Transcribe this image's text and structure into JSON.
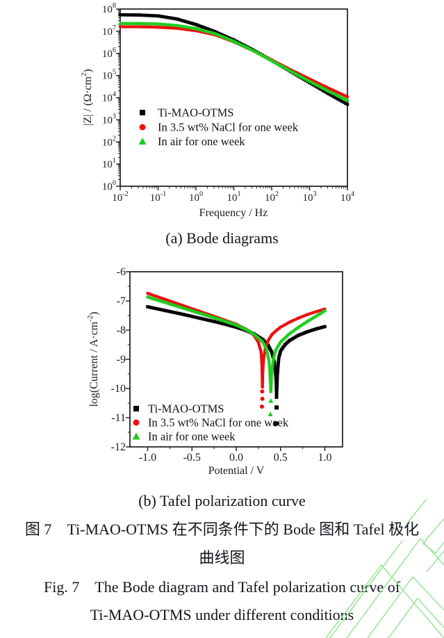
{
  "figure": {
    "caption_a": "(a) Bode diagrams",
    "caption_b": "(b) Tafel polarization curve",
    "caption_zh_line1": "图 7　Ti-MAO-OTMS 在不同条件下的 Bode 图和 Tafel 极化",
    "caption_zh_line2": "曲线图",
    "caption_en_line1": "Fig. 7　The Bode diagram and Tafel polarization curve of",
    "caption_en_line2": "Ti-MAO-OTMS under different conditions"
  },
  "colors": {
    "series_black": "#000000",
    "series_red": "#ec0f0f",
    "series_green": "#1fcc1f",
    "axis": "#1a1a1a",
    "text": "#14141c",
    "watermark": "#9fe59f",
    "background": "#ffffff"
  },
  "chart_data": [
    {
      "name": "bode",
      "type": "line",
      "title": "",
      "x_scale": "log",
      "xlabel": "Frequency / Hz",
      "ylabel_parts": [
        {
          "t": "|Z| / (Ω·cm"
        },
        {
          "t": "2",
          "sup": true
        },
        {
          "t": ")"
        }
      ],
      "xlim": [
        -2,
        4
      ],
      "ylim": [
        0,
        8
      ],
      "grid": false,
      "legend_position": "center-left",
      "x_ticks": [
        {
          "v": -2,
          "base": "10",
          "exp": "-2"
        },
        {
          "v": -1,
          "base": "10",
          "exp": "-1"
        },
        {
          "v": 0,
          "base": "10",
          "exp": "0"
        },
        {
          "v": 1,
          "base": "10",
          "exp": "1"
        },
        {
          "v": 2,
          "base": "10",
          "exp": "2"
        },
        {
          "v": 3,
          "base": "10",
          "exp": "3"
        },
        {
          "v": 4,
          "base": "10",
          "exp": "4"
        }
      ],
      "y_ticks": [
        {
          "v": 0,
          "base": "10",
          "exp": "0"
        },
        {
          "v": 1,
          "base": "10",
          "exp": "1"
        },
        {
          "v": 2,
          "base": "10",
          "exp": "2"
        },
        {
          "v": 3,
          "base": "10",
          "exp": "3"
        },
        {
          "v": 4,
          "base": "10",
          "exp": "4"
        },
        {
          "v": 5,
          "base": "10",
          "exp": "5"
        },
        {
          "v": 6,
          "base": "10",
          "exp": "6"
        },
        {
          "v": 7,
          "base": "10",
          "exp": "7"
        },
        {
          "v": 8,
          "base": "10",
          "exp": "8"
        }
      ],
      "series": [
        {
          "name": "Ti-MAO-OTMS",
          "marker": "square",
          "color": "#000000",
          "points": [
            [
              -2,
              7.74
            ],
            [
              -1.5,
              7.73
            ],
            [
              -1,
              7.69
            ],
            [
              -0.5,
              7.55
            ],
            [
              0,
              7.3
            ],
            [
              0.5,
              6.98
            ],
            [
              1,
              6.6
            ],
            [
              1.5,
              6.16
            ],
            [
              2,
              5.68
            ],
            [
              2.5,
              5.18
            ],
            [
              3,
              4.68
            ],
            [
              3.5,
              4.18
            ],
            [
              4,
              3.7
            ]
          ]
        },
        {
          "name": "In 3.5 wt% NaCl for one week",
          "marker": "circle",
          "color": "#ec0f0f",
          "points": [
            [
              -2,
              7.2
            ],
            [
              -1.5,
              7.2
            ],
            [
              -1,
              7.18
            ],
            [
              -0.5,
              7.13
            ],
            [
              0,
              7.02
            ],
            [
              0.5,
              6.84
            ],
            [
              1,
              6.52
            ],
            [
              1.5,
              6.13
            ],
            [
              2,
              5.7
            ],
            [
              2.5,
              5.26
            ],
            [
              3,
              4.84
            ],
            [
              3.5,
              4.43
            ],
            [
              4,
              4.04
            ]
          ]
        },
        {
          "name": "In air for one week",
          "marker": "triangle",
          "color": "#1fcc1f",
          "points": [
            [
              -2,
              7.35
            ],
            [
              -1.5,
              7.35
            ],
            [
              -1,
              7.33
            ],
            [
              -0.5,
              7.26
            ],
            [
              0,
              7.12
            ],
            [
              0.5,
              6.9
            ],
            [
              1,
              6.55
            ],
            [
              1.5,
              6.14
            ],
            [
              2,
              5.68
            ],
            [
              2.5,
              5.2
            ],
            [
              3,
              4.74
            ],
            [
              3.5,
              4.3
            ],
            [
              4,
              3.88
            ]
          ]
        }
      ]
    },
    {
      "name": "tafel",
      "type": "line",
      "title": "",
      "x_scale": "linear",
      "xlabel": "Potential / V",
      "ylabel_parts": [
        {
          "t": "log(Current / A·cm"
        },
        {
          "t": "-2",
          "sup": true
        },
        {
          "t": ")"
        }
      ],
      "xlim": [
        -1.2,
        1.2
      ],
      "ylim": [
        -12,
        -6
      ],
      "grid": false,
      "legend_position": "lower-left",
      "x_ticks": [
        {
          "v": -1.0,
          "label": "-1.0"
        },
        {
          "v": -0.5,
          "label": "-0.5"
        },
        {
          "v": 0.0,
          "label": "0.0"
        },
        {
          "v": 0.5,
          "label": "0.5"
        },
        {
          "v": 1.0,
          "label": "1.0"
        }
      ],
      "y_ticks": [
        {
          "v": -6,
          "label": "-6"
        },
        {
          "v": -7,
          "label": "-7"
        },
        {
          "v": -8,
          "label": "-8"
        },
        {
          "v": -9,
          "label": "-9"
        },
        {
          "v": -10,
          "label": "-10"
        },
        {
          "v": -11,
          "label": "-11"
        },
        {
          "v": -12,
          "label": "-12"
        }
      ],
      "series": [
        {
          "name": "Ti-MAO-OTMS",
          "marker": "square",
          "color": "#000000",
          "points": [
            [
              -1.0,
              -7.2
            ],
            [
              -0.8,
              -7.33
            ],
            [
              -0.6,
              -7.46
            ],
            [
              -0.4,
              -7.6
            ],
            [
              -0.2,
              -7.74
            ],
            [
              0.0,
              -7.9
            ],
            [
              0.1,
              -8.0
            ],
            [
              0.2,
              -8.13
            ],
            [
              0.3,
              -8.32
            ],
            [
              0.36,
              -8.52
            ],
            [
              0.4,
              -8.75
            ],
            [
              0.43,
              -9.1
            ],
            [
              0.45,
              -9.7
            ],
            [
              0.455,
              -10.3
            ],
            [
              0.465,
              -9.5
            ],
            [
              0.48,
              -8.95
            ],
            [
              0.5,
              -8.72
            ],
            [
              0.55,
              -8.5
            ],
            [
              0.6,
              -8.36
            ],
            [
              0.7,
              -8.18
            ],
            [
              0.8,
              -8.06
            ],
            [
              0.9,
              -7.96
            ],
            [
              1.0,
              -7.88
            ]
          ],
          "scatter": [
            [
              0.455,
              -10.65
            ],
            [
              0.45,
              -11.2
            ]
          ]
        },
        {
          "name": "In 3.5 wt% NaCl for one week",
          "marker": "circle",
          "color": "#ec0f0f",
          "points": [
            [
              -1.0,
              -6.74
            ],
            [
              -0.8,
              -6.95
            ],
            [
              -0.6,
              -7.16
            ],
            [
              -0.4,
              -7.37
            ],
            [
              -0.2,
              -7.58
            ],
            [
              0.0,
              -7.8
            ],
            [
              0.1,
              -7.95
            ],
            [
              0.15,
              -8.04
            ],
            [
              0.2,
              -8.18
            ],
            [
              0.25,
              -8.42
            ],
            [
              0.28,
              -8.75
            ],
            [
              0.29,
              -9.2
            ],
            [
              0.295,
              -9.95
            ],
            [
              0.3,
              -9.4
            ],
            [
              0.31,
              -8.95
            ],
            [
              0.33,
              -8.6
            ],
            [
              0.36,
              -8.36
            ],
            [
              0.4,
              -8.16
            ],
            [
              0.45,
              -8.02
            ],
            [
              0.5,
              -7.9
            ],
            [
              0.6,
              -7.73
            ],
            [
              0.7,
              -7.59
            ],
            [
              0.8,
              -7.47
            ],
            [
              0.9,
              -7.37
            ],
            [
              1.0,
              -7.28
            ]
          ],
          "scatter": [
            [
              0.293,
              -10.1
            ],
            [
              0.295,
              -10.35
            ],
            [
              0.29,
              -10.62
            ]
          ]
        },
        {
          "name": "In air for one week",
          "marker": "triangle",
          "color": "#1fcc1f",
          "points": [
            [
              -1.0,
              -6.86
            ],
            [
              -0.8,
              -7.05
            ],
            [
              -0.6,
              -7.24
            ],
            [
              -0.4,
              -7.43
            ],
            [
              -0.2,
              -7.62
            ],
            [
              0.0,
              -7.82
            ],
            [
              0.1,
              -7.96
            ],
            [
              0.2,
              -8.13
            ],
            [
              0.3,
              -8.4
            ],
            [
              0.34,
              -8.62
            ],
            [
              0.37,
              -9.05
            ],
            [
              0.385,
              -9.7
            ],
            [
              0.39,
              -10.1
            ],
            [
              0.4,
              -9.45
            ],
            [
              0.42,
              -8.95
            ],
            [
              0.45,
              -8.65
            ],
            [
              0.5,
              -8.4
            ],
            [
              0.6,
              -8.12
            ],
            [
              0.7,
              -7.9
            ],
            [
              0.8,
              -7.7
            ],
            [
              0.9,
              -7.52
            ],
            [
              1.0,
              -7.33
            ]
          ],
          "scatter": [
            [
              0.39,
              -10.42
            ],
            [
              0.385,
              -10.88
            ]
          ]
        }
      ]
    }
  ]
}
